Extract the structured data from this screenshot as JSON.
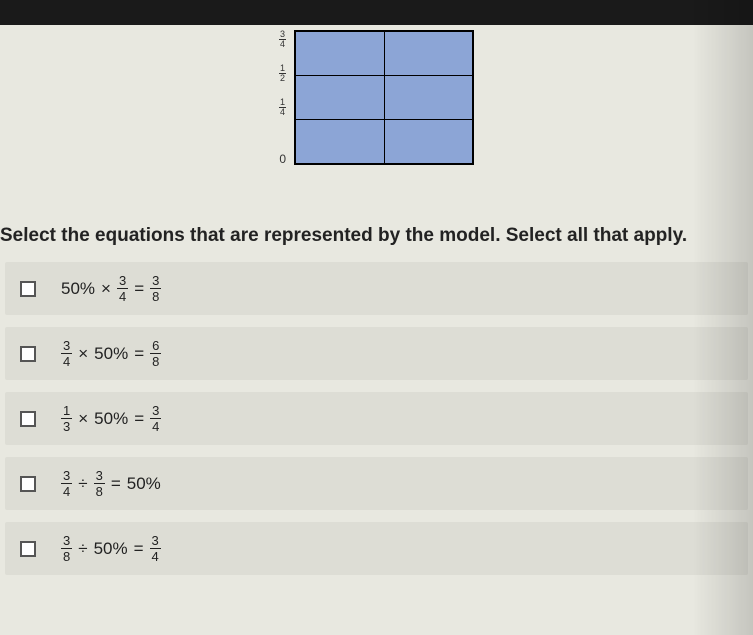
{
  "diagram": {
    "y_labels": [
      "3/4",
      "1/2",
      "1/4",
      "0"
    ],
    "rows": 3,
    "cols": 2,
    "shaded_color": "#8ca5d6",
    "border_color": "#000000",
    "background_color": "#e8e8e0"
  },
  "question": "Select the equations that are represented by the model. Select all that apply.",
  "options": [
    {
      "parts": [
        {
          "type": "text",
          "value": "50%"
        },
        {
          "type": "text",
          "value": "×"
        },
        {
          "type": "frac",
          "num": "3",
          "den": "4"
        },
        {
          "type": "text",
          "value": "="
        },
        {
          "type": "frac",
          "num": "3",
          "den": "8"
        }
      ]
    },
    {
      "parts": [
        {
          "type": "frac",
          "num": "3",
          "den": "4"
        },
        {
          "type": "text",
          "value": "×"
        },
        {
          "type": "text",
          "value": "50%"
        },
        {
          "type": "text",
          "value": "="
        },
        {
          "type": "frac",
          "num": "6",
          "den": "8"
        }
      ]
    },
    {
      "parts": [
        {
          "type": "frac",
          "num": "1",
          "den": "3"
        },
        {
          "type": "text",
          "value": "×"
        },
        {
          "type": "text",
          "value": "50%"
        },
        {
          "type": "text",
          "value": "="
        },
        {
          "type": "frac",
          "num": "3",
          "den": "4"
        }
      ]
    },
    {
      "parts": [
        {
          "type": "frac",
          "num": "3",
          "den": "4"
        },
        {
          "type": "text",
          "value": "÷"
        },
        {
          "type": "frac",
          "num": "3",
          "den": "8"
        },
        {
          "type": "text",
          "value": "="
        },
        {
          "type": "text",
          "value": "50%"
        }
      ]
    },
    {
      "parts": [
        {
          "type": "frac",
          "num": "3",
          "den": "8"
        },
        {
          "type": "text",
          "value": "÷"
        },
        {
          "type": "text",
          "value": "50%"
        },
        {
          "type": "text",
          "value": "="
        },
        {
          "type": "frac",
          "num": "3",
          "den": "4"
        }
      ]
    }
  ]
}
